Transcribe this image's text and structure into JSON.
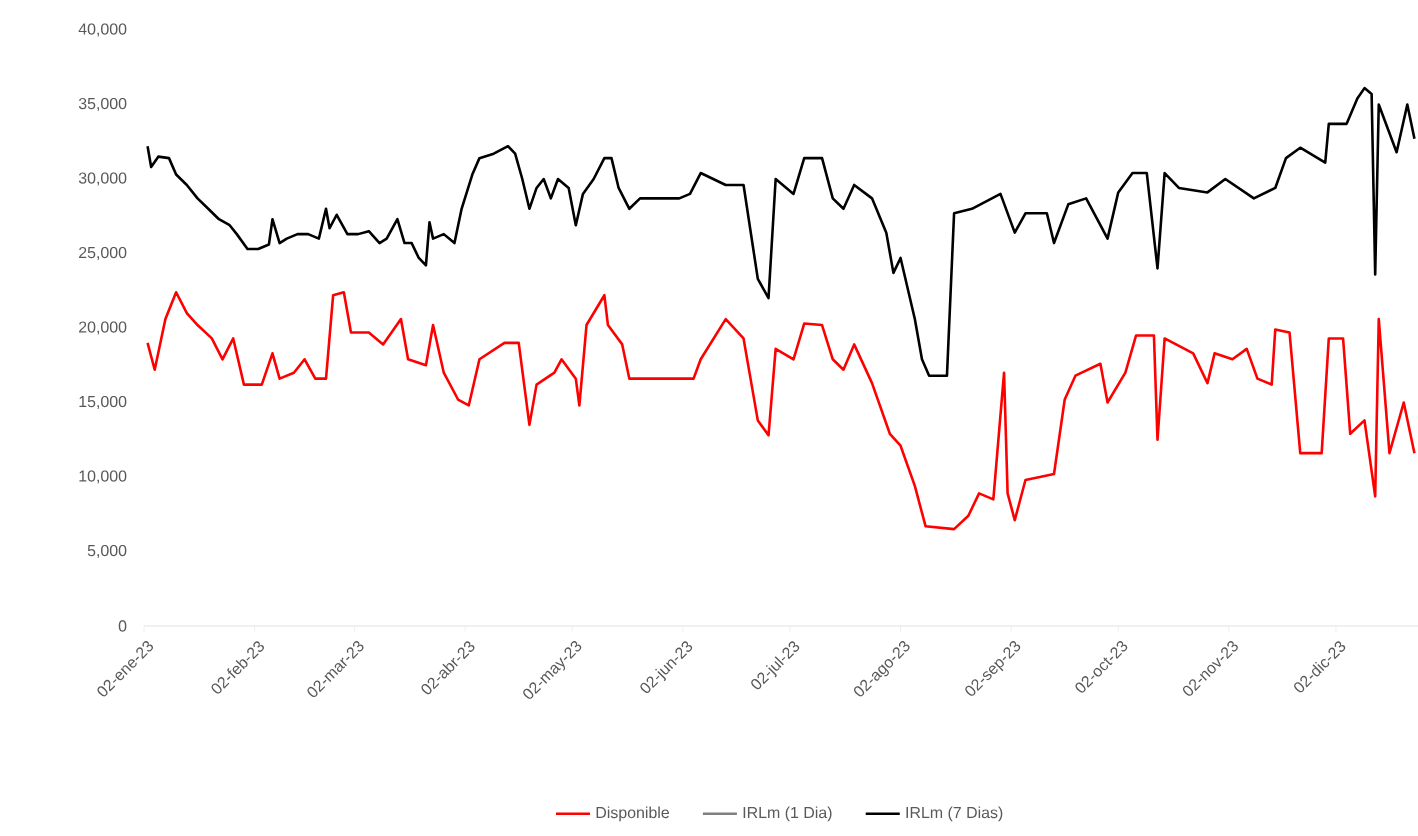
{
  "chart_data": {
    "type": "line",
    "legend": "bottom",
    "xlim": [
      "2023-01-02",
      "2023-12-25"
    ],
    "ylim": [
      0,
      40000
    ],
    "xticks": [
      {
        "value": "2023-01-02",
        "label": "02-ene-23"
      },
      {
        "value": "2023-02-02",
        "label": "02-feb-23"
      },
      {
        "value": "2023-03-02",
        "label": "02-mar-23"
      },
      {
        "value": "2023-04-02",
        "label": "02-abr-23"
      },
      {
        "value": "2023-05-02",
        "label": "02-may-23"
      },
      {
        "value": "2023-06-02",
        "label": "02-jun-23"
      },
      {
        "value": "2023-07-02",
        "label": "02-jul-23"
      },
      {
        "value": "2023-08-02",
        "label": "02-ago-23"
      },
      {
        "value": "2023-09-02",
        "label": "02-sep-23"
      },
      {
        "value": "2023-10-02",
        "label": "02-oct-23"
      },
      {
        "value": "2023-11-02",
        "label": "02-nov-23"
      },
      {
        "value": "2023-12-02",
        "label": "02-dic-23"
      }
    ],
    "yticks": [
      0,
      {
        "value": 5000,
        "label": "5,000"
      },
      {
        "value": 10000,
        "label": "10,000"
      },
      {
        "value": 15000,
        "label": "15,000"
      },
      {
        "value": 20000,
        "label": "20,000"
      },
      {
        "value": 25000,
        "label": "25,000"
      },
      {
        "value": 30000,
        "label": "30,000"
      },
      {
        "value": 35000,
        "label": "35,000"
      },
      {
        "value": 40000,
        "label": "40,000"
      }
    ],
    "series": [
      {
        "name": "Disponible",
        "color": "#ff0000",
        "x": [
          "2023-01-03",
          "2023-01-05",
          "2023-01-08",
          "2023-01-11",
          "2023-01-14",
          "2023-01-17",
          "2023-01-21",
          "2023-01-24",
          "2023-01-27",
          "2023-01-30",
          "2023-02-04",
          "2023-02-07",
          "2023-02-09",
          "2023-02-13",
          "2023-02-16",
          "2023-02-19",
          "2023-02-22",
          "2023-02-24",
          "2023-02-27",
          "2023-03-01",
          "2023-03-06",
          "2023-03-10",
          "2023-03-15",
          "2023-03-17",
          "2023-03-22",
          "2023-03-24",
          "2023-03-27",
          "2023-03-31",
          "2023-04-03",
          "2023-04-06",
          "2023-04-13",
          "2023-04-17",
          "2023-04-20",
          "2023-04-22",
          "2023-04-27",
          "2023-04-29",
          "2023-05-03",
          "2023-05-04",
          "2023-05-06",
          "2023-05-11",
          "2023-05-12",
          "2023-05-16",
          "2023-05-18",
          "2023-05-23",
          "2023-06-05",
          "2023-06-07",
          "2023-06-14",
          "2023-06-19",
          "2023-06-23",
          "2023-06-26",
          "2023-06-28",
          "2023-07-03",
          "2023-07-06",
          "2023-07-11",
          "2023-07-14",
          "2023-07-17",
          "2023-07-20",
          "2023-07-25",
          "2023-07-30",
          "2023-08-02",
          "2023-08-06",
          "2023-08-09",
          "2023-08-17",
          "2023-08-21",
          "2023-08-24",
          "2023-08-28",
          "2023-08-31",
          "2023-09-01",
          "2023-09-03",
          "2023-09-06",
          "2023-09-14",
          "2023-09-17",
          "2023-09-20",
          "2023-09-27",
          "2023-09-29",
          "2023-10-04",
          "2023-10-07",
          "2023-10-12",
          "2023-10-13",
          "2023-10-15",
          "2023-10-23",
          "2023-10-27",
          "2023-10-29",
          "2023-11-03",
          "2023-11-07",
          "2023-11-10",
          "2023-11-14",
          "2023-11-15",
          "2023-11-19",
          "2023-11-22",
          "2023-11-28",
          "2023-11-30",
          "2023-12-04",
          "2023-12-06",
          "2023-12-10",
          "2023-12-13",
          "2023-12-14",
          "2023-12-17",
          "2023-12-21",
          "2023-12-24"
        ],
        "values": [
          19000,
          17200,
          20600,
          22400,
          21000,
          20200,
          19300,
          17900,
          19300,
          16200,
          16200,
          18300,
          16600,
          17000,
          17900,
          16600,
          16600,
          22200,
          22400,
          19700,
          19700,
          18900,
          20600,
          17900,
          17500,
          20200,
          17000,
          15200,
          14800,
          17900,
          19000,
          19000,
          13500,
          16200,
          17000,
          17900,
          16600,
          14800,
          20200,
          22200,
          20200,
          18900,
          16600,
          16600,
          16600,
          17900,
          20600,
          19300,
          13800,
          12800,
          18600,
          17900,
          20300,
          20200,
          17900,
          17200,
          18900,
          16300,
          12900,
          12100,
          9400,
          6700,
          6500,
          7400,
          8900,
          8500,
          17000,
          8900,
          7100,
          9800,
          10200,
          15200,
          16800,
          17600,
          15000,
          17000,
          19500,
          19500,
          12500,
          19300,
          18300,
          16300,
          18300,
          17900,
          18600,
          16600,
          16200,
          19900,
          19700,
          11600,
          11600,
          19300,
          19300,
          12900,
          13800,
          8700,
          20600,
          11600,
          15000,
          11600
        ]
      },
      {
        "name": "IRLm (1 Dia)",
        "color": "#808080"
      },
      {
        "name": "IRLm (7 Dias)",
        "color": "#000000",
        "x": [
          "2023-01-03",
          "2023-01-04",
          "2023-01-06",
          "2023-01-09",
          "2023-01-11",
          "2023-01-14",
          "2023-01-17",
          "2023-01-20",
          "2023-01-23",
          "2023-01-26",
          "2023-01-28",
          "2023-01-31",
          "2023-02-03",
          "2023-02-06",
          "2023-02-07",
          "2023-02-09",
          "2023-02-11",
          "2023-02-14",
          "2023-02-17",
          "2023-02-20",
          "2023-02-22",
          "2023-02-23",
          "2023-02-25",
          "2023-02-28",
          "2023-03-03",
          "2023-03-06",
          "2023-03-09",
          "2023-03-11",
          "2023-03-14",
          "2023-03-16",
          "2023-03-18",
          "2023-03-20",
          "2023-03-22",
          "2023-03-23",
          "2023-03-24",
          "2023-03-27",
          "2023-03-30",
          "2023-04-01",
          "2023-04-04",
          "2023-04-06",
          "2023-04-10",
          "2023-04-14",
          "2023-04-16",
          "2023-04-18",
          "2023-04-20",
          "2023-04-22",
          "2023-04-24",
          "2023-04-26",
          "2023-04-28",
          "2023-05-01",
          "2023-05-03",
          "2023-05-05",
          "2023-05-08",
          "2023-05-11",
          "2023-05-13",
          "2023-05-15",
          "2023-05-18",
          "2023-05-21",
          "2023-05-26",
          "2023-06-01",
          "2023-06-04",
          "2023-06-07",
          "2023-06-14",
          "2023-06-19",
          "2023-06-23",
          "2023-06-26",
          "2023-06-28",
          "2023-07-03",
          "2023-07-06",
          "2023-07-11",
          "2023-07-14",
          "2023-07-17",
          "2023-07-20",
          "2023-07-25",
          "2023-07-29",
          "2023-07-31",
          "2023-08-02",
          "2023-08-06",
          "2023-08-08",
          "2023-08-10",
          "2023-08-15",
          "2023-08-17",
          "2023-08-22",
          "2023-08-30",
          "2023-09-03",
          "2023-09-06",
          "2023-09-12",
          "2023-09-14",
          "2023-09-18",
          "2023-09-23",
          "2023-09-27",
          "2023-09-29",
          "2023-10-02",
          "2023-10-06",
          "2023-10-10",
          "2023-10-13",
          "2023-10-15",
          "2023-10-19",
          "2023-10-27",
          "2023-11-01",
          "2023-11-09",
          "2023-11-15",
          "2023-11-18",
          "2023-11-22",
          "2023-11-29",
          "2023-11-30",
          "2023-12-05",
          "2023-12-08",
          "2023-12-10",
          "2023-12-12",
          "2023-12-13",
          "2023-12-14",
          "2023-12-19",
          "2023-12-22",
          "2023-12-24"
        ],
        "values": [
          32200,
          30800,
          31500,
          31400,
          30300,
          29600,
          28700,
          28000,
          27300,
          26900,
          26300,
          25300,
          25300,
          25600,
          27300,
          25700,
          26000,
          26300,
          26300,
          26000,
          28000,
          26700,
          27600,
          26300,
          26300,
          26500,
          25700,
          26000,
          27300,
          25700,
          25700,
          24700,
          24200,
          27100,
          26000,
          26300,
          25700,
          28000,
          30300,
          31400,
          31700,
          32200,
          31700,
          30000,
          28000,
          29400,
          30000,
          28700,
          30000,
          29400,
          26900,
          29000,
          30000,
          31400,
          31400,
          29400,
          28000,
          28700,
          28700,
          28700,
          29000,
          30400,
          29600,
          29600,
          23300,
          22000,
          30000,
          29000,
          31400,
          31400,
          28700,
          28000,
          29600,
          28700,
          26400,
          23700,
          24700,
          20600,
          17900,
          16800,
          16800,
          27700,
          28000,
          29000,
          26400,
          27700,
          27700,
          25700,
          28300,
          28700,
          26900,
          26000,
          29100,
          30400,
          30400,
          24000,
          30400,
          29400,
          29100,
          30000,
          28700,
          29400,
          31400,
          32100,
          31100,
          33700,
          33700,
          35400,
          36100,
          35700,
          23600,
          35000,
          31800,
          35000,
          32700
        ]
      }
    ]
  }
}
